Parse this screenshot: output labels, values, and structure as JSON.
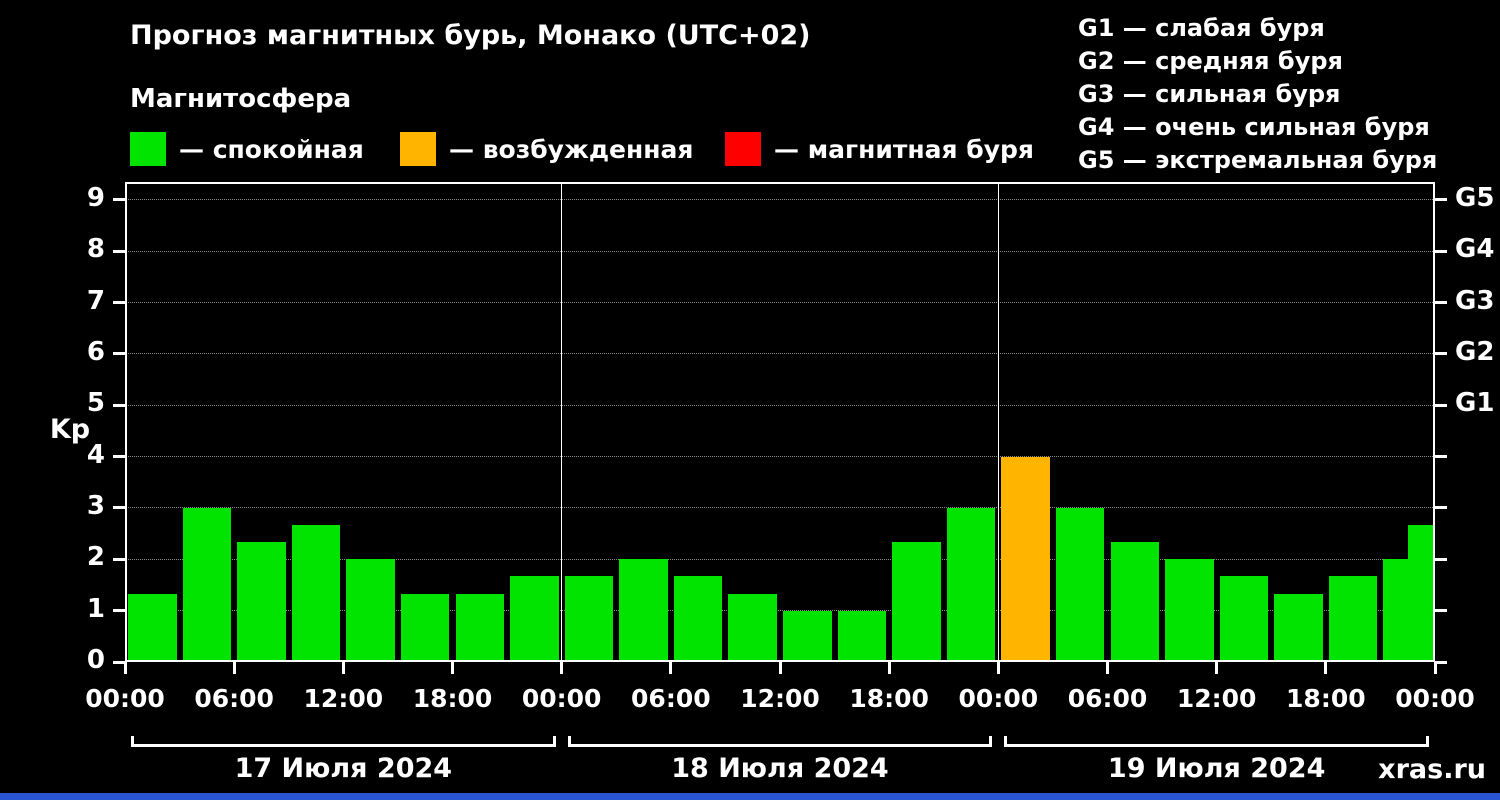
{
  "header": {
    "title": "Прогноз магнитных бурь, Монако (UTC+02)",
    "subtitle": "Магнитосфера"
  },
  "legend": {
    "items": [
      {
        "label": "— спокойная",
        "color_key": "quiet"
      },
      {
        "label": "— возбужденная",
        "color_key": "excited"
      },
      {
        "label": "— магнитная буря",
        "color_key": "storm"
      }
    ]
  },
  "g_legend": [
    "G1 — слабая буря",
    "G2 — средняя буря",
    "G3 — сильная буря",
    "G4 — очень сильная буря",
    "G5 — экстремальная буря"
  ],
  "colors": {
    "quiet": "#00e400",
    "excited": "#ffb400",
    "storm": "#ff0000",
    "axis": "#ffffff",
    "grid": "rgba(255,255,255,0.55)",
    "footer_bar": "#2a55d0"
  },
  "footer": {
    "watermark": "xras.ru"
  },
  "chart_data": {
    "type": "bar",
    "title": "Прогноз магнитных бурь, Монако (UTC+02)",
    "xlabel": "",
    "ylabel": "Kp",
    "ylim": [
      0,
      9.35
    ],
    "grid": "dotted-horizontal",
    "y_ticks": [
      0,
      1,
      2,
      3,
      4,
      5,
      6,
      7,
      8,
      9
    ],
    "g_axis": [
      {
        "value": 5,
        "label": "G1"
      },
      {
        "value": 6,
        "label": "G2"
      },
      {
        "value": 7,
        "label": "G3"
      },
      {
        "value": 8,
        "label": "G4"
      },
      {
        "value": 9,
        "label": "G5"
      }
    ],
    "x_hours_total": 72,
    "x_ticks": [
      {
        "hour": 0,
        "label": "00:00"
      },
      {
        "hour": 6,
        "label": "06:00"
      },
      {
        "hour": 12,
        "label": "12:00"
      },
      {
        "hour": 18,
        "label": "18:00"
      },
      {
        "hour": 24,
        "label": "00:00"
      },
      {
        "hour": 30,
        "label": "06:00"
      },
      {
        "hour": 36,
        "label": "12:00"
      },
      {
        "hour": 42,
        "label": "18:00"
      },
      {
        "hour": 48,
        "label": "00:00"
      },
      {
        "hour": 54,
        "label": "06:00"
      },
      {
        "hour": 60,
        "label": "12:00"
      },
      {
        "hour": 66,
        "label": "18:00"
      },
      {
        "hour": 72,
        "label": "00:00"
      }
    ],
    "day_separators_hours": [
      24,
      48
    ],
    "days": [
      {
        "label": "17 Июля 2024",
        "start_hour": 0,
        "end_hour": 24
      },
      {
        "label": "18 Июля 2024",
        "start_hour": 24,
        "end_hour": 48
      },
      {
        "label": "19 Июля 2024",
        "start_hour": 48,
        "end_hour": 72
      }
    ],
    "bars": [
      {
        "start_hour": 0,
        "value": 1.33,
        "state": "quiet"
      },
      {
        "start_hour": 3,
        "value": 3.0,
        "state": "quiet"
      },
      {
        "start_hour": 6,
        "value": 2.33,
        "state": "quiet"
      },
      {
        "start_hour": 9,
        "value": 2.67,
        "state": "quiet"
      },
      {
        "start_hour": 12,
        "value": 2.0,
        "state": "quiet"
      },
      {
        "start_hour": 15,
        "value": 1.33,
        "state": "quiet"
      },
      {
        "start_hour": 18,
        "value": 1.33,
        "state": "quiet"
      },
      {
        "start_hour": 21,
        "value": 1.67,
        "state": "quiet"
      },
      {
        "start_hour": 24,
        "value": 1.67,
        "state": "quiet"
      },
      {
        "start_hour": 27,
        "value": 2.0,
        "state": "quiet"
      },
      {
        "start_hour": 30,
        "value": 1.67,
        "state": "quiet"
      },
      {
        "start_hour": 33,
        "value": 1.33,
        "state": "quiet"
      },
      {
        "start_hour": 36,
        "value": 1.0,
        "state": "quiet"
      },
      {
        "start_hour": 39,
        "value": 1.0,
        "state": "quiet"
      },
      {
        "start_hour": 42,
        "value": 2.33,
        "state": "quiet"
      },
      {
        "start_hour": 45,
        "value": 3.0,
        "state": "quiet"
      },
      {
        "start_hour": 48,
        "value": 4.0,
        "state": "excited"
      },
      {
        "start_hour": 51,
        "value": 3.0,
        "state": "quiet"
      },
      {
        "start_hour": 54,
        "value": 2.33,
        "state": "quiet"
      },
      {
        "start_hour": 57,
        "value": 2.0,
        "state": "quiet"
      },
      {
        "start_hour": 60,
        "value": 1.67,
        "state": "quiet"
      },
      {
        "start_hour": 63,
        "value": 1.33,
        "state": "quiet"
      },
      {
        "start_hour": 66,
        "value": 1.67,
        "state": "quiet"
      },
      {
        "start_hour": 69,
        "value": 2.0,
        "state": "quiet"
      },
      {
        "start_hour": 72,
        "value": 2.67,
        "state": "quiet",
        "clipped": true
      }
    ]
  }
}
